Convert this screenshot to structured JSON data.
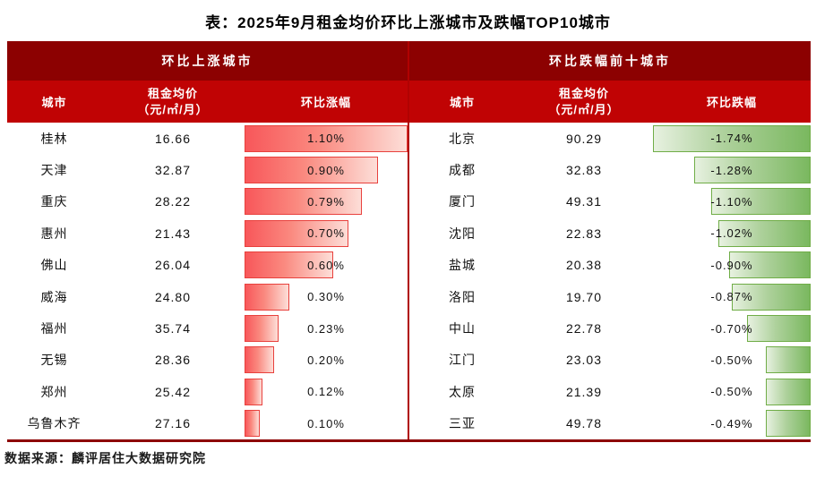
{
  "title": "表：2025年9月租金均价环比上涨城市及跌幅TOP10城市",
  "source": "数据来源：麟评居住大数据研究院",
  "colors": {
    "header_dark_red": "#8c0101",
    "header_bright_red": "#c00304",
    "divider_red": "#b00202",
    "up_bar_border": "#e8413d",
    "up_bar_gradient_start": "#f8575a",
    "up_bar_gradient_end": "#fdded8",
    "down_bar_border": "#70ad47",
    "down_bar_gradient_start": "#e7f1e0",
    "down_bar_gradient_end": "#7ab85f"
  },
  "panels": [
    {
      "header": "环比上涨城市",
      "columns": {
        "city": "城市",
        "price1": "租金均价",
        "price2": "（元/㎡/月）",
        "change": "环比涨幅"
      }
    },
    {
      "header": "环比跌幅前十城市",
      "columns": {
        "city": "城市",
        "price1": "租金均价",
        "price2": "（元/㎡/月）",
        "change": "环比跌幅"
      }
    }
  ],
  "chart_data": [
    {
      "type": "table",
      "title": "环比上涨城市",
      "columns": [
        "城市",
        "租金均价（元/㎡/月）",
        "环比涨幅"
      ],
      "bar_style": "red gradient data bar, left-anchored, length proportional to change, max 1.10% fills column",
      "rows": [
        {
          "city": "桂林",
          "price": "16.66",
          "change": "1.10%",
          "change_value": 1.1
        },
        {
          "city": "天津",
          "price": "32.87",
          "change": "0.90%",
          "change_value": 0.9
        },
        {
          "city": "重庆",
          "price": "28.22",
          "change": "0.79%",
          "change_value": 0.79
        },
        {
          "city": "惠州",
          "price": "21.43",
          "change": "0.70%",
          "change_value": 0.7
        },
        {
          "city": "佛山",
          "price": "26.04",
          "change": "0.60%",
          "change_value": 0.6
        },
        {
          "city": "威海",
          "price": "24.80",
          "change": "0.30%",
          "change_value": 0.3
        },
        {
          "city": "福州",
          "price": "35.74",
          "change": "0.23%",
          "change_value": 0.23
        },
        {
          "city": "无锡",
          "price": "28.36",
          "change": "0.20%",
          "change_value": 0.2
        },
        {
          "city": "郑州",
          "price": "25.42",
          "change": "0.12%",
          "change_value": 0.12
        },
        {
          "city": "乌鲁木齐",
          "price": "27.16",
          "change": "0.10%",
          "change_value": 0.1
        }
      ]
    },
    {
      "type": "table",
      "title": "环比跌幅前十城市",
      "columns": [
        "城市",
        "租金均价（元/㎡/月）",
        "环比跌幅"
      ],
      "bar_style": "green gradient data bar, right-anchored, length proportional to |change|, max 1.74% fills column",
      "rows": [
        {
          "city": "北京",
          "price": "90.29",
          "change": "-1.74%",
          "change_value": -1.74
        },
        {
          "city": "成都",
          "price": "32.83",
          "change": "-1.28%",
          "change_value": -1.28
        },
        {
          "city": "厦门",
          "price": "49.31",
          "change": "-1.10%",
          "change_value": -1.1
        },
        {
          "city": "沈阳",
          "price": "22.83",
          "change": "-1.02%",
          "change_value": -1.02
        },
        {
          "city": "盐城",
          "price": "20.38",
          "change": "-0.90%",
          "change_value": -0.9
        },
        {
          "city": "洛阳",
          "price": "19.70",
          "change": "-0.87%",
          "change_value": -0.87
        },
        {
          "city": "中山",
          "price": "22.78",
          "change": "-0.70%",
          "change_value": -0.7
        },
        {
          "city": "江门",
          "price": "23.03",
          "change": "-0.50%",
          "change_value": -0.5
        },
        {
          "city": "太原",
          "price": "21.39",
          "change": "-0.50%",
          "change_value": -0.5
        },
        {
          "city": "三亚",
          "price": "49.78",
          "change": "-0.49%",
          "change_value": -0.49
        }
      ]
    }
  ]
}
